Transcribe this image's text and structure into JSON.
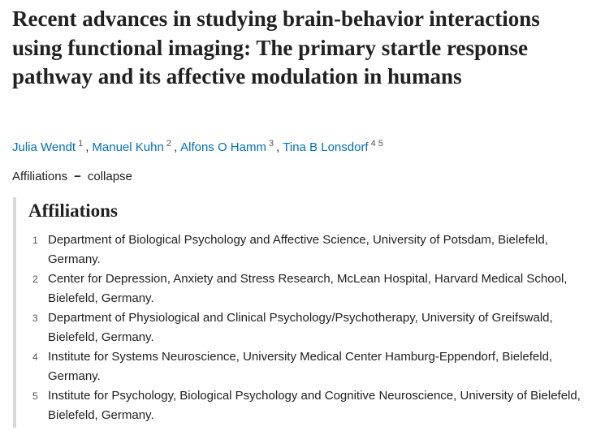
{
  "article": {
    "title": "Recent advances in studying brain-behavior interactions using functional imaging: The primary startle response pathway and its affective modulation in humans",
    "author_separator": ",",
    "authors": [
      {
        "name": "Julia Wendt",
        "affiliations": [
          "1"
        ]
      },
      {
        "name": "Manuel Kuhn",
        "affiliations": [
          "2"
        ]
      },
      {
        "name": "Alfons O Hamm",
        "affiliations": [
          "3"
        ]
      },
      {
        "name": "Tina B Lonsdorf",
        "affiliations": [
          "4",
          "5"
        ]
      }
    ],
    "affiliations_toggle": {
      "label": "Affiliations",
      "icon": "−",
      "action": "collapse"
    },
    "affiliations_heading": "Affiliations",
    "affiliations": [
      {
        "number": "1",
        "text": "Department of Biological Psychology and Affective Science, University of Potsdam, Bielefeld, Germany."
      },
      {
        "number": "2",
        "text": "Center for Depression, Anxiety and Stress Research, McLean Hospital, Harvard Medical School, Bielefeld, Germany."
      },
      {
        "number": "3",
        "text": "Department of Physiological and Clinical Psychology/Psychotherapy, University of Greifswald, Bielefeld, Germany."
      },
      {
        "number": "4",
        "text": "Institute for Systems Neuroscience, University Medical Center Hamburg-Eppendorf, Bielefeld, Germany."
      },
      {
        "number": "5",
        "text": "Institute for Psychology, Biological Psychology and Cognitive Neuroscience, University of Bielefeld, Bielefeld, Germany."
      }
    ]
  }
}
